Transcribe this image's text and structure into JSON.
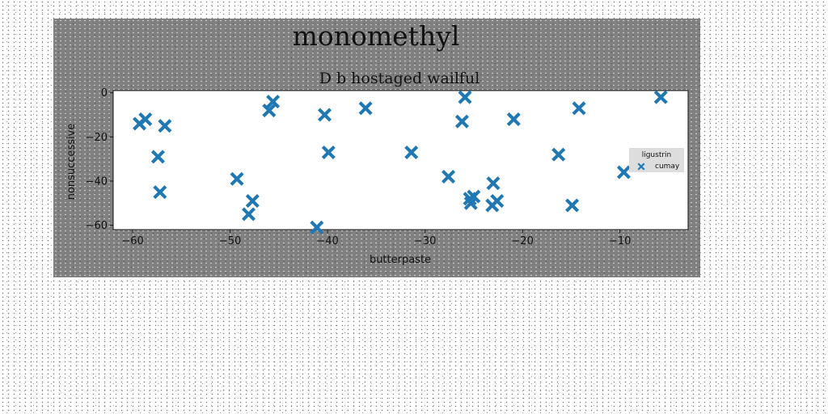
{
  "chart_data": {
    "type": "scatter",
    "title": "monomethyl",
    "subtitle": "D b hostaged wailful",
    "xlabel": "butterpaste",
    "ylabel": "nonsuccessive",
    "xlim": [
      -62,
      -3
    ],
    "ylim": [
      -62,
      1
    ],
    "xticks": [
      -60,
      -50,
      -40,
      -30,
      -20,
      -10
    ],
    "yticks": [
      0,
      -20,
      -40,
      -60
    ],
    "grid": false,
    "legend": {
      "title": "ligustrin",
      "placement": "center-right"
    },
    "series": [
      {
        "name": "cumay",
        "marker": "X",
        "color": "#1f77b4",
        "points": [
          {
            "x": -59.3,
            "y": -14
          },
          {
            "x": -58.7,
            "y": -12
          },
          {
            "x": -56.7,
            "y": -15
          },
          {
            "x": -57.4,
            "y": -29
          },
          {
            "x": -57.2,
            "y": -45
          },
          {
            "x": -49.3,
            "y": -39
          },
          {
            "x": -47.7,
            "y": -49
          },
          {
            "x": -48.1,
            "y": -55
          },
          {
            "x": -46.0,
            "y": -8
          },
          {
            "x": -45.6,
            "y": -4
          },
          {
            "x": -40.3,
            "y": -10
          },
          {
            "x": -39.9,
            "y": -27
          },
          {
            "x": -41.1,
            "y": -61
          },
          {
            "x": -36.1,
            "y": -7
          },
          {
            "x": -31.4,
            "y": -27
          },
          {
            "x": -27.6,
            "y": -38
          },
          {
            "x": -26.2,
            "y": -13
          },
          {
            "x": -25.9,
            "y": -2
          },
          {
            "x": -25.4,
            "y": -48
          },
          {
            "x": -25.0,
            "y": -47
          },
          {
            "x": -25.3,
            "y": -50
          },
          {
            "x": -23.0,
            "y": -41
          },
          {
            "x": -22.6,
            "y": -49
          },
          {
            "x": -23.1,
            "y": -51
          },
          {
            "x": -20.9,
            "y": -12
          },
          {
            "x": -16.3,
            "y": -28
          },
          {
            "x": -14.9,
            "y": -51
          },
          {
            "x": -14.2,
            "y": -7
          },
          {
            "x": -9.6,
            "y": -36
          },
          {
            "x": -5.8,
            "y": -2
          }
        ]
      }
    ]
  }
}
